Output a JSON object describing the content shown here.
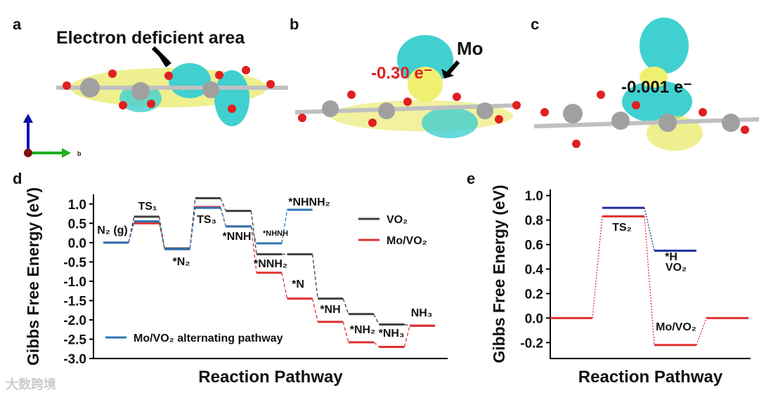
{
  "panels": {
    "a": "a",
    "b": "b",
    "c": "c",
    "d": "d",
    "e": "e"
  },
  "structures": {
    "a_note": "Electron deficient area",
    "axis_c": "c",
    "axis_b": "b",
    "b_atom": "Mo",
    "b_charge": "-0.30 e⁻",
    "c_charge": "-0.001 e⁻"
  },
  "watermark": "大数跨境",
  "chart_data": [
    {
      "type": "energy_levels",
      "xlabel": "Reaction Pathway",
      "ylabel": "Gibbs Free Energy (eV)",
      "ylim": [
        -3,
        1.25
      ],
      "yticks": [
        {
          "value": 1,
          "label": "1.0"
        },
        {
          "value": 0.5,
          "label": "0.5"
        },
        {
          "value": 0,
          "label": "0.0"
        },
        {
          "value": -0.5,
          "label": "-0.5"
        },
        {
          "value": -1,
          "label": "-1.0"
        },
        {
          "value": -1.5,
          "label": "-1.5"
        },
        {
          "value": -2,
          "label": "-2.0"
        },
        {
          "value": -2.5,
          "label": "-2.5"
        },
        {
          "value": -3,
          "label": "-3.0"
        }
      ],
      "series": [
        {
          "name": "VO₂",
          "color": "#404040",
          "values": [
            0,
            0.67,
            -0.15,
            1.15,
            0.82,
            -0.3,
            -0.3,
            -1.45,
            -1.85,
            -2.12,
            -2.15
          ]
        },
        {
          "name": "Mo/VO₂",
          "color": "#e03030",
          "values": [
            0,
            0.5,
            -0.17,
            0.92,
            0.42,
            -0.78,
            -1.45,
            -2.05,
            -2.58,
            -2.7,
            -2.15
          ]
        },
        {
          "name": "Mo/VO₂ alternating pathway",
          "color": "#2e75b6",
          "values": [
            0,
            0.55,
            -0.17,
            0.9,
            0.42,
            -0.02,
            0.85,
            null,
            null,
            null,
            null
          ]
        }
      ],
      "annotations": [
        "N₂ (g)",
        "TS₁",
        "*N₂",
        "TS₃",
        "*NNH",
        "*NHNH",
        "*NHNH₂",
        "*NNH₂",
        "*N",
        "*NH",
        "*NH₂",
        "*NH₃",
        "NH₃"
      ]
    },
    {
      "type": "energy_levels",
      "xlabel": "Reaction Pathway",
      "ylabel": "Gibbs Free Energy (eV)",
      "ylim": [
        -0.33,
        1.05
      ],
      "yticks": [
        {
          "value": 1,
          "label": "1.0"
        },
        {
          "value": 0.8,
          "label": "0.8"
        },
        {
          "value": 0.6,
          "label": "0.6"
        },
        {
          "value": 0.4,
          "label": "0.4"
        },
        {
          "value": 0.2,
          "label": "0.2"
        },
        {
          "value": 0,
          "label": "0.0"
        },
        {
          "value": -0.2,
          "label": "-0.2"
        }
      ],
      "series": [
        {
          "name": "VO₂",
          "color": "#1f2fa0",
          "values": [
            null,
            0.9,
            0.55,
            null
          ]
        },
        {
          "name": "Mo/VO₂",
          "color": "#e03030",
          "values": [
            0,
            0.83,
            -0.22,
            0
          ]
        }
      ],
      "annotations": [
        "TS₂",
        "*H",
        "VO₂",
        "Mo/VO₂"
      ]
    }
  ]
}
